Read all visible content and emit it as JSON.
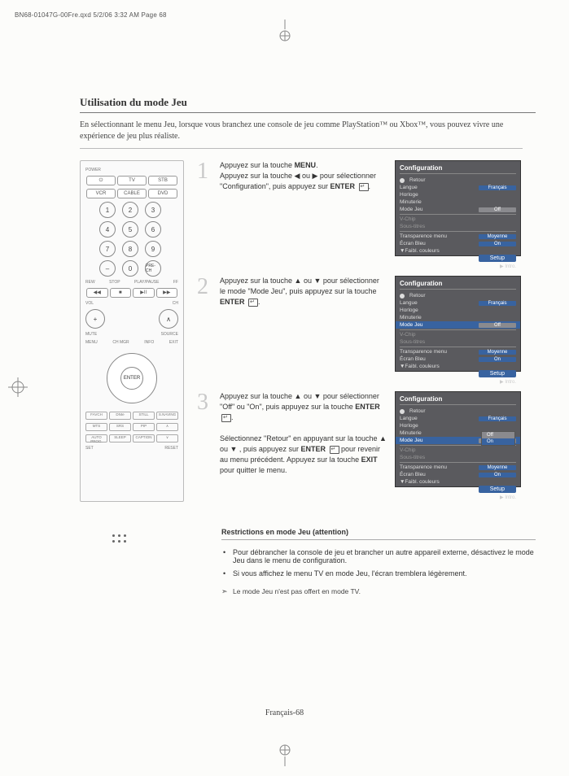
{
  "meta": {
    "header": "BN68-01047G-00Fre.qxd  5/2/06  3:32 AM  Page 68",
    "footer": "Français-68"
  },
  "title": "Utilisation du mode Jeu",
  "intro": "En sélectionnant le menu Jeu, lorsque vous branchez une console de jeu comme PlayStation™ ou Xbox™, vous pouvez vivre une expérience de jeu plus réaliste.",
  "steps": [
    {
      "num": "1",
      "text_html": "Appuyez sur la touche <b>MENU</b>.<br>Appuyez sur la touche ◀ ou ▶ pour sélectionner \"Configuration\", puis appuyez sur <b>ENTER</b> <span class='enter-icon'></span>."
    },
    {
      "num": "2",
      "text_html": "Appuyez sur la touche ▲ ou ▼ pour sélectionner le mode \"Mode Jeu\", puis appuyez sur la touche <b>ENTER</b> <span class='enter-icon'></span>."
    },
    {
      "num": "3",
      "text_html": "Appuyez sur la touche ▲ ou ▼ pour sélectionner \"Off\" ou \"On\", puis appuyez sur la touche <b>ENTER</b> <span class='enter-icon'></span>.<br><br>Sélectionnez \"Retour\" en appuyant sur la touche ▲ ou ▼ , puis appuyez sur <b>ENTER</b> <span class='enter-icon'></span> pour revenir au menu précédent. Appuyez sur la touche <b>EXIT</b> pour quitter le menu."
    }
  ],
  "osd": {
    "title": "Configuration",
    "retour": "Retour",
    "rows": [
      {
        "label": "Langue",
        "val": "Français",
        "cls": "osd-val"
      },
      {
        "label": "Horloge",
        "val": "",
        "cls": ""
      },
      {
        "label": "Minuterie",
        "val": "",
        "cls": ""
      },
      {
        "label": "Mode Jeu",
        "val": "Off",
        "cls": "osd-val off"
      }
    ],
    "dimrows": [
      {
        "label": "V-Chip"
      },
      {
        "label": "Sous-titres"
      }
    ],
    "rows2": [
      {
        "label": "Transparence menu",
        "val": "Moyenne",
        "cls": "osd-val"
      },
      {
        "label": "Écran Bleu",
        "val": "On",
        "cls": "osd-val"
      },
      {
        "label": "▼Faibl. couleurs",
        "val": "",
        "cls": ""
      }
    ],
    "setup": "Setup",
    "intro_lbl": "▶ Intro.",
    "popup": {
      "off": "Off",
      "on": "On"
    }
  },
  "remote": {
    "row1": [
      "POWER",
      "TV",
      "STB"
    ],
    "row2": [
      "VCR",
      "CABLE",
      "DVD"
    ],
    "nums": [
      "1",
      "2",
      "3",
      "4",
      "5",
      "6",
      "7",
      "8",
      "9",
      "–",
      "0",
      "PRE-CH"
    ],
    "labels_mid": [
      "REW",
      "STOP",
      "PLAY/PAUSE",
      "FF"
    ],
    "vol_ch": [
      "VOL",
      "CH"
    ],
    "side": [
      "MUTE",
      "SOURCE"
    ],
    "corner": [
      "MENU",
      "CH MGR",
      "INFO",
      "EXIT"
    ],
    "enter": "ENTER",
    "bottom1": [
      "FAVCH",
      "DNIe",
      "STILL",
      "S.NAVING"
    ],
    "bottom2": [
      "MTS",
      "SRS",
      "PIP",
      ""
    ],
    "bottom3": [
      "AUTO PROG.",
      "SLEEP",
      "CAPTION",
      ""
    ],
    "reset": [
      "SET",
      "RESET"
    ]
  },
  "restrictions": {
    "header": "Restrictions en mode Jeu (attention)",
    "bullets": [
      "Pour débrancher la console de jeu et brancher un autre appareil externe, désactivez le mode Jeu dans le menu de configuration.",
      "Si vous affichez le menu TV en mode Jeu, l'écran tremblera légèrement."
    ],
    "note": "Le mode Jeu n'est pas offert en mode TV."
  },
  "colors": {
    "osd_bg": "#5a5a5e",
    "osd_accent": "#3863a0",
    "step_num": "#c9c9c9"
  }
}
